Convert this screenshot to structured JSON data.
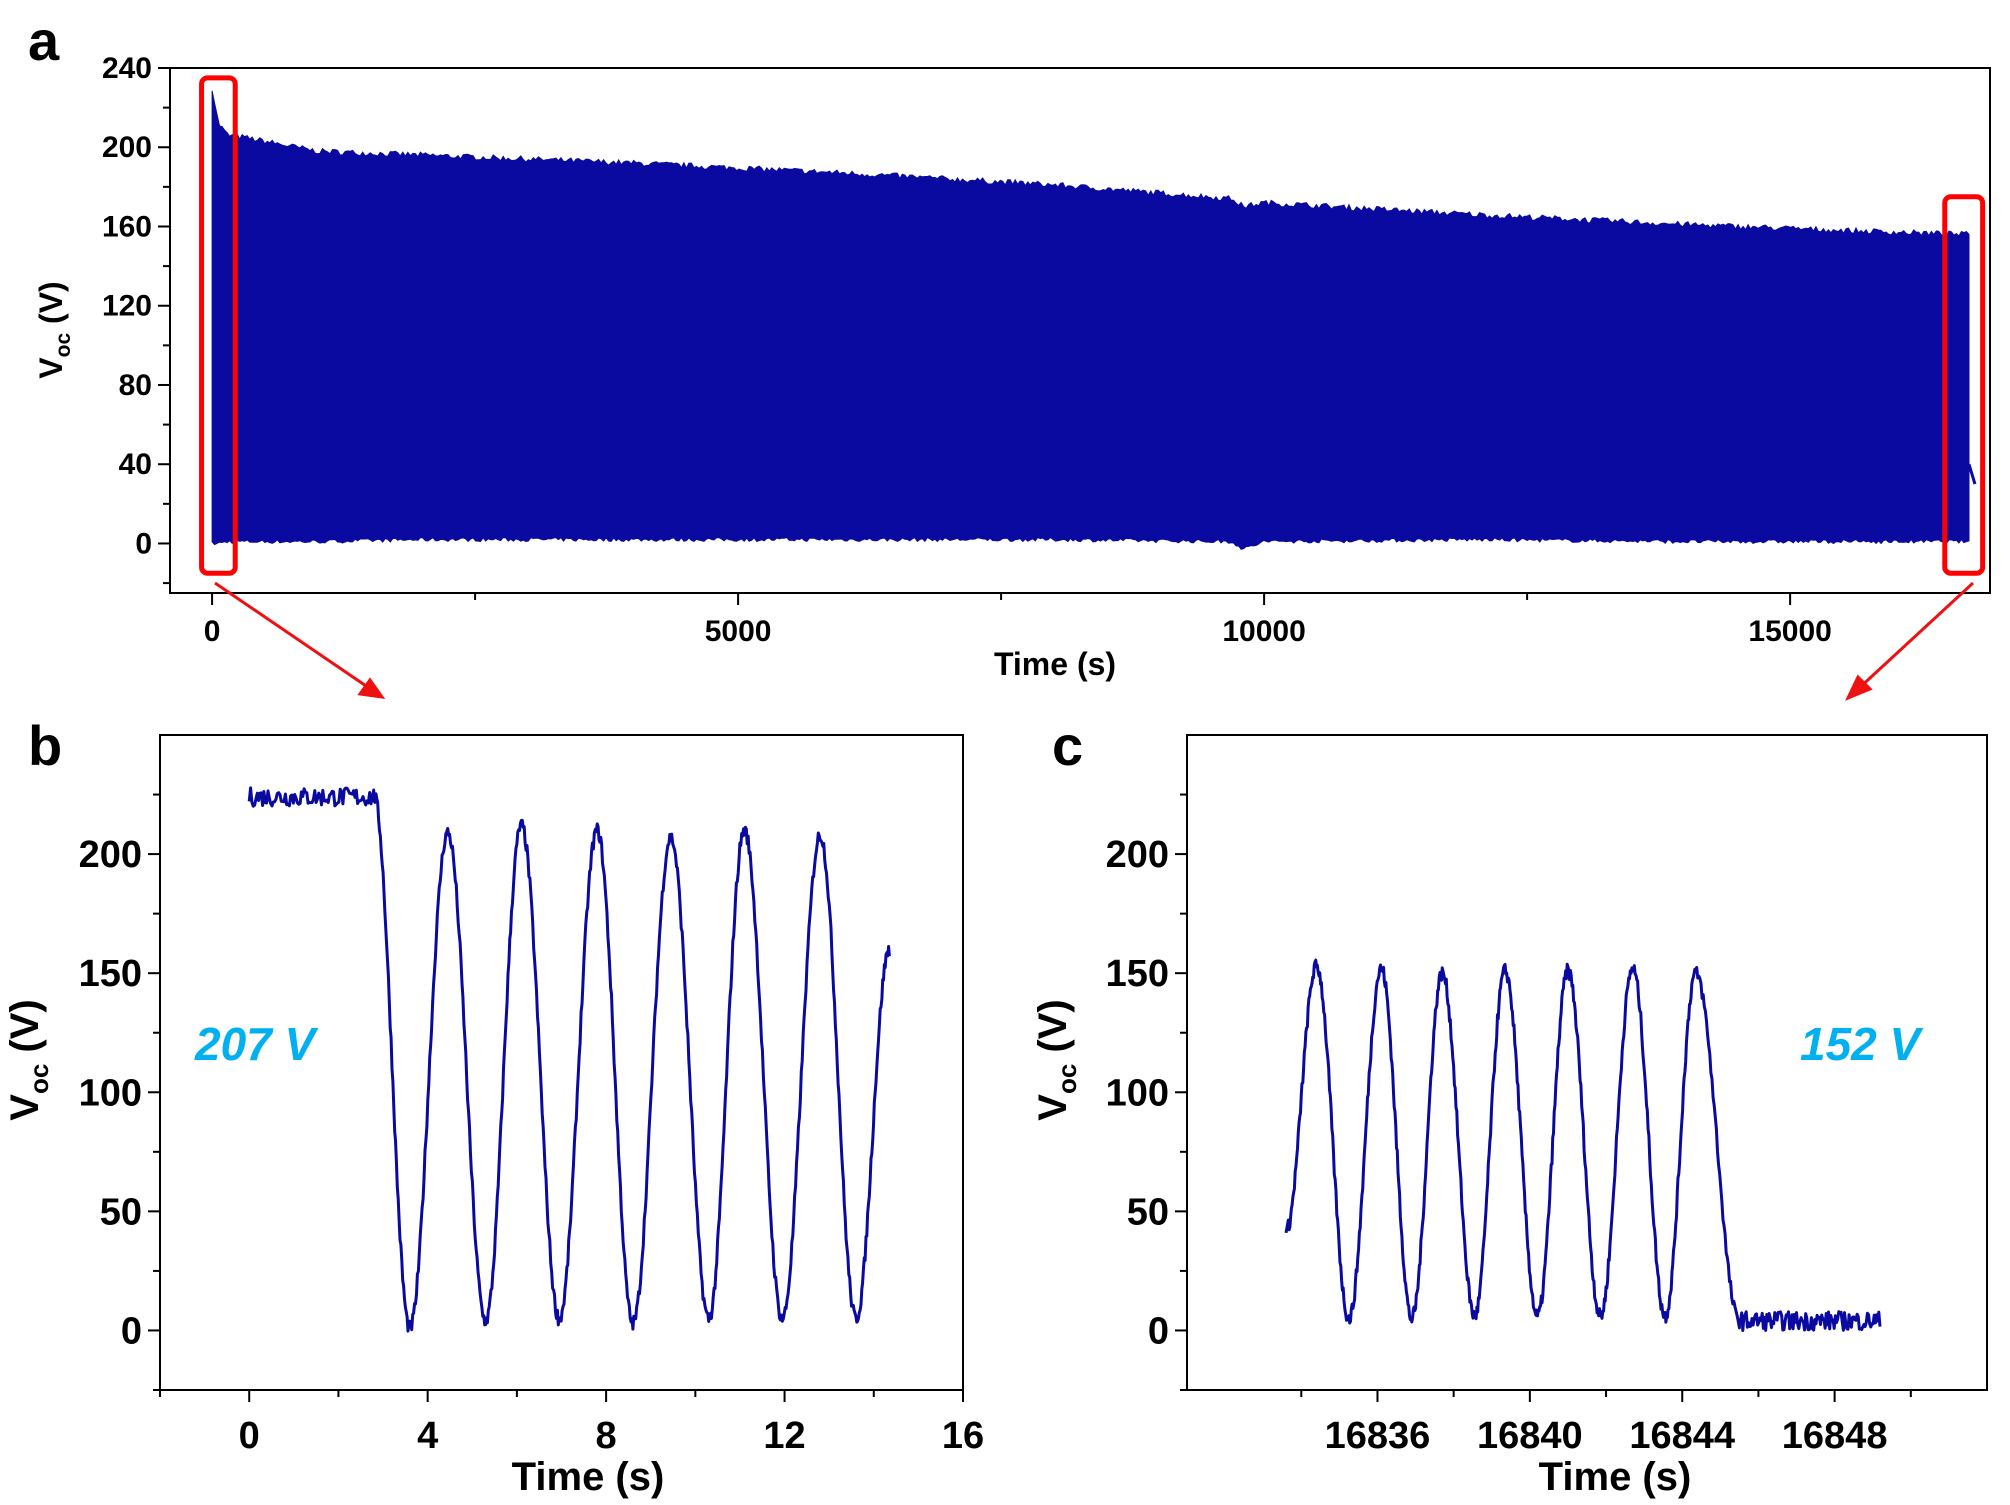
{
  "colors": {
    "trace": "#0a0aa0",
    "highlight_box": "#ff0000",
    "annotation": "#00b0f0"
  },
  "chart_data": [
    {
      "panel": "a",
      "type": "area",
      "xlabel": "Time (s)",
      "ylabel": {
        "main": "V",
        "sub": "oc",
        "unit": " (V)"
      },
      "xlim": [
        -400,
        16900
      ],
      "ylim": [
        -25,
        240
      ],
      "x_ticks": [
        0,
        5000,
        10000,
        15000
      ],
      "y_ticks": [
        0,
        40,
        80,
        120,
        160,
        200,
        240
      ],
      "envelope": {
        "x": [
          0,
          60,
          150,
          300,
          1000,
          2000,
          4000,
          6000,
          8000,
          9700,
          9800,
          10000,
          12000,
          14000,
          15500,
          16650,
          16700
        ],
        "upper": [
          230,
          212,
          206,
          205,
          198,
          196,
          192,
          187,
          181,
          174,
          170,
          172,
          166,
          161,
          158,
          156,
          156
        ],
        "lower": [
          0,
          0,
          1,
          1,
          1,
          2,
          2,
          2,
          2,
          1,
          -3,
          1,
          2,
          1,
          1,
          1,
          1
        ]
      },
      "highlight_boxes": [
        {
          "x": [
            -100,
            220
          ],
          "y": [
            -15,
            235
          ]
        },
        {
          "x": [
            16470,
            16830
          ],
          "y": [
            -15,
            175
          ]
        }
      ]
    },
    {
      "panel": "b",
      "type": "line",
      "xlabel": "Time (s)",
      "ylabel": {
        "main": "V",
        "sub": "oc",
        "unit": " (V)"
      },
      "xlim": [
        -2,
        16
      ],
      "ylim": [
        -25,
        250
      ],
      "x_ticks": [
        0,
        4,
        8,
        12,
        16
      ],
      "y_ticks": [
        0,
        50,
        100,
        150,
        200
      ],
      "series": [
        {
          "baseline": {
            "x": [
              0,
              2.8
            ],
            "level": 224
          },
          "peaks": [
            {
              "t": 4.45,
              "v": 209
            },
            {
              "t": 6.1,
              "v": 212
            },
            {
              "t": 7.8,
              "v": 210
            },
            {
              "t": 9.45,
              "v": 207
            },
            {
              "t": 11.1,
              "v": 210
            },
            {
              "t": 12.8,
              "v": 208
            }
          ],
          "troughs": [
            {
              "t": 3.6,
              "v": 1
            },
            {
              "t": 5.3,
              "v": 4
            },
            {
              "t": 6.95,
              "v": 5
            },
            {
              "t": 8.6,
              "v": 3
            },
            {
              "t": 10.3,
              "v": 5
            },
            {
              "t": 11.95,
              "v": 5
            },
            {
              "t": 13.6,
              "v": 5
            }
          ],
          "end": {
            "t": 14.35,
            "v": 160
          }
        }
      ],
      "annotation": "207 V"
    },
    {
      "panel": "c",
      "type": "line",
      "xlabel": "Time (s)",
      "ylabel": {
        "main": "V",
        "sub": "oc",
        "unit": " (V)"
      },
      "xlim": [
        16831,
        16852
      ],
      "ylim": [
        -25,
        250
      ],
      "x_ticks": [
        16836,
        16840,
        16844,
        16848
      ],
      "y_ticks": [
        0,
        50,
        100,
        150,
        200
      ],
      "series": [
        {
          "start": {
            "t": 16833.6,
            "v": 42
          },
          "peaks": [
            {
              "t": 16834.4,
              "v": 153
            },
            {
              "t": 16836.1,
              "v": 152
            },
            {
              "t": 16837.7,
              "v": 150
            },
            {
              "t": 16839.35,
              "v": 151
            },
            {
              "t": 16841.0,
              "v": 151
            },
            {
              "t": 16842.7,
              "v": 152
            },
            {
              "t": 16844.35,
              "v": 150
            }
          ],
          "troughs": [
            {
              "t": 16835.25,
              "v": 5
            },
            {
              "t": 16836.9,
              "v": 5
            },
            {
              "t": 16838.55,
              "v": 6
            },
            {
              "t": 16840.2,
              "v": 6
            },
            {
              "t": 16841.85,
              "v": 6
            },
            {
              "t": 16843.55,
              "v": 6
            }
          ],
          "baseline": {
            "x": [
              16845.5,
              16849.2
            ],
            "level": 4
          }
        }
      ],
      "annotation": "152 V"
    }
  ],
  "panels": {
    "a": {
      "letter": "a"
    },
    "b": {
      "letter": "b"
    },
    "c": {
      "letter": "c"
    }
  }
}
